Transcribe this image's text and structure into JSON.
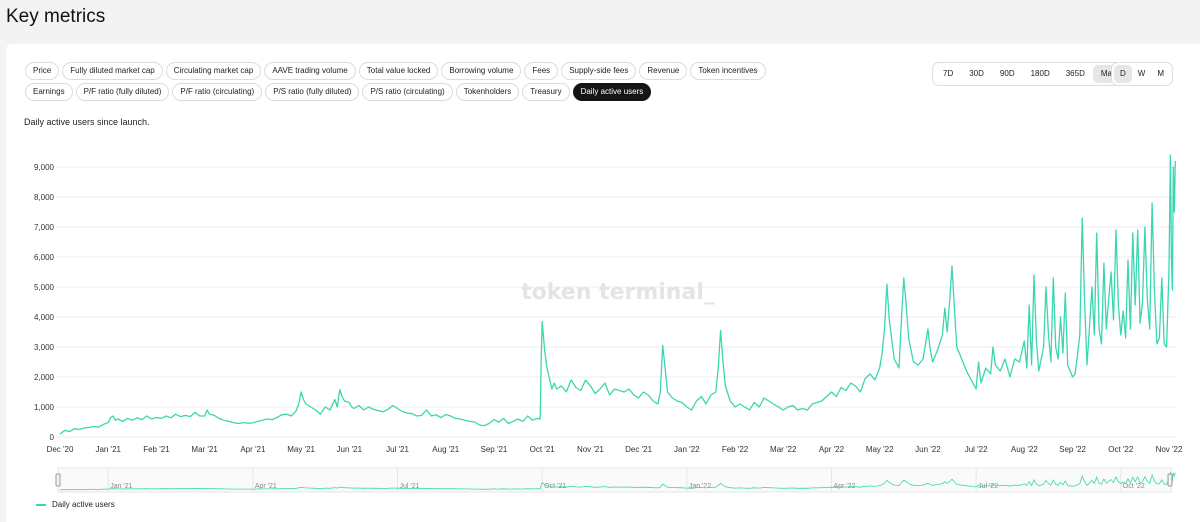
{
  "page": {
    "title": "Key metrics"
  },
  "metric_chips_row1": [
    "Price",
    "Fully diluted market cap",
    "Circulating market cap",
    "AAVE trading volume",
    "Total value locked",
    "Borrowing volume",
    "Fees",
    "Supply-side fees",
    "Revenue",
    "Token incentives"
  ],
  "metric_chips_row2": [
    "Earnings",
    "P/F ratio (fully diluted)",
    "P/F ratio (circulating)",
    "P/S ratio (fully diluted)",
    "P/S ratio (circulating)",
    "Tokenholders",
    "Treasury",
    "Daily active users"
  ],
  "active_metric": "Daily active users",
  "range_options": [
    "7D",
    "30D",
    "90D",
    "180D",
    "365D",
    "Max"
  ],
  "active_range": "Max",
  "granularity_options": [
    "D",
    "W",
    "M"
  ],
  "active_granularity": "D",
  "subtitle": "Daily active users since launch.",
  "watermark": "token terminal_",
  "legend_label": "Daily active users",
  "colors": {
    "line": "#3ad6b0",
    "grid": "#ececec",
    "active_chip": "#151515"
  },
  "chart_data": {
    "type": "line",
    "title": "",
    "xlabel": "",
    "ylabel": "",
    "ylim": [
      0,
      9500
    ],
    "y_ticks": [
      "0",
      "1,000",
      "2,000",
      "3,000",
      "4,000",
      "5,000",
      "6,000",
      "7,000",
      "8,000",
      "9,000"
    ],
    "y_tick_values": [
      0,
      1000,
      2000,
      3000,
      4000,
      5000,
      6000,
      7000,
      8000,
      9000
    ],
    "x_ticks": [
      "Dec '20",
      "Jan '21",
      "Feb '21",
      "Mar '21",
      "Apr '21",
      "May '21",
      "Jun '21",
      "Jul '21",
      "Aug '21",
      "Sep '21",
      "Oct '21",
      "Nov '21",
      "Dec '21",
      "Jan '22",
      "Feb '22",
      "Mar '22",
      "Apr '22",
      "May '22",
      "Jun '22",
      "Jul '22",
      "Aug '22",
      "Sep '22",
      "Oct '22",
      "Nov '22"
    ],
    "navigator_ticks": [
      "Jan '21",
      "Apr '21",
      "Jul '21",
      "Oct '21",
      "Jan '22",
      "Apr '22",
      "Jul '22",
      "Oct '22"
    ],
    "grid": true,
    "legend_position": "bottom-left",
    "x_unit": "months since Dec '20",
    "series": [
      {
        "name": "Daily active users",
        "points": [
          [
            0.0,
            100
          ],
          [
            0.1,
            220
          ],
          [
            0.2,
            180
          ],
          [
            0.3,
            280
          ],
          [
            0.4,
            250
          ],
          [
            0.5,
            300
          ],
          [
            0.6,
            320
          ],
          [
            0.7,
            350
          ],
          [
            0.8,
            330
          ],
          [
            0.9,
            420
          ],
          [
            1.0,
            480
          ],
          [
            1.05,
            650
          ],
          [
            1.1,
            700
          ],
          [
            1.15,
            560
          ],
          [
            1.2,
            600
          ],
          [
            1.3,
            520
          ],
          [
            1.4,
            620
          ],
          [
            1.5,
            560
          ],
          [
            1.6,
            640
          ],
          [
            1.7,
            580
          ],
          [
            1.8,
            700
          ],
          [
            1.9,
            600
          ],
          [
            2.0,
            650
          ],
          [
            2.1,
            620
          ],
          [
            2.2,
            700
          ],
          [
            2.3,
            640
          ],
          [
            2.4,
            760
          ],
          [
            2.5,
            680
          ],
          [
            2.6,
            720
          ],
          [
            2.7,
            680
          ],
          [
            2.8,
            820
          ],
          [
            2.9,
            700
          ],
          [
            3.0,
            700
          ],
          [
            3.05,
            900
          ],
          [
            3.1,
            760
          ],
          [
            3.2,
            720
          ],
          [
            3.3,
            620
          ],
          [
            3.4,
            560
          ],
          [
            3.5,
            520
          ],
          [
            3.6,
            480
          ],
          [
            3.7,
            450
          ],
          [
            3.8,
            480
          ],
          [
            3.9,
            460
          ],
          [
            4.0,
            470
          ],
          [
            4.1,
            520
          ],
          [
            4.2,
            560
          ],
          [
            4.3,
            600
          ],
          [
            4.4,
            580
          ],
          [
            4.5,
            650
          ],
          [
            4.6,
            740
          ],
          [
            4.7,
            760
          ],
          [
            4.8,
            700
          ],
          [
            4.9,
            880
          ],
          [
            4.95,
            1100
          ],
          [
            5.0,
            1500
          ],
          [
            5.05,
            1250
          ],
          [
            5.1,
            1100
          ],
          [
            5.2,
            1000
          ],
          [
            5.3,
            900
          ],
          [
            5.4,
            760
          ],
          [
            5.5,
            1000
          ],
          [
            5.6,
            900
          ],
          [
            5.7,
            1250
          ],
          [
            5.75,
            1000
          ],
          [
            5.8,
            1580
          ],
          [
            5.85,
            1350
          ],
          [
            5.9,
            1200
          ],
          [
            6.0,
            1150
          ],
          [
            6.05,
            1000
          ],
          [
            6.1,
            950
          ],
          [
            6.2,
            1050
          ],
          [
            6.3,
            900
          ],
          [
            6.4,
            1000
          ],
          [
            6.5,
            920
          ],
          [
            6.6,
            880
          ],
          [
            6.7,
            840
          ],
          [
            6.8,
            920
          ],
          [
            6.9,
            1050
          ],
          [
            7.0,
            950
          ],
          [
            7.1,
            850
          ],
          [
            7.2,
            800
          ],
          [
            7.3,
            780
          ],
          [
            7.4,
            700
          ],
          [
            7.5,
            720
          ],
          [
            7.6,
            900
          ],
          [
            7.65,
            800
          ],
          [
            7.7,
            700
          ],
          [
            7.8,
            740
          ],
          [
            7.9,
            650
          ],
          [
            8.0,
            750
          ],
          [
            8.1,
            700
          ],
          [
            8.2,
            620
          ],
          [
            8.3,
            600
          ],
          [
            8.4,
            560
          ],
          [
            8.5,
            520
          ],
          [
            8.6,
            500
          ],
          [
            8.7,
            400
          ],
          [
            8.8,
            380
          ],
          [
            8.9,
            450
          ],
          [
            9.0,
            580
          ],
          [
            9.1,
            500
          ],
          [
            9.2,
            620
          ],
          [
            9.3,
            450
          ],
          [
            9.4,
            520
          ],
          [
            9.5,
            600
          ],
          [
            9.6,
            520
          ],
          [
            9.7,
            700
          ],
          [
            9.8,
            560
          ],
          [
            9.9,
            620
          ],
          [
            9.96,
            600
          ],
          [
            9.98,
            2600
          ],
          [
            10.0,
            3850
          ],
          [
            10.05,
            2900
          ],
          [
            10.1,
            2300
          ],
          [
            10.15,
            1950
          ],
          [
            10.2,
            1600
          ],
          [
            10.25,
            1800
          ],
          [
            10.3,
            1600
          ],
          [
            10.4,
            1700
          ],
          [
            10.5,
            1500
          ],
          [
            10.6,
            1900
          ],
          [
            10.7,
            1650
          ],
          [
            10.8,
            1550
          ],
          [
            10.9,
            1900
          ],
          [
            11.0,
            1700
          ],
          [
            11.1,
            1450
          ],
          [
            11.2,
            1600
          ],
          [
            11.3,
            1800
          ],
          [
            11.4,
            1400
          ],
          [
            11.5,
            1600
          ],
          [
            11.6,
            1550
          ],
          [
            11.7,
            1500
          ],
          [
            11.8,
            1600
          ],
          [
            11.9,
            1400
          ],
          [
            12.0,
            1300
          ],
          [
            12.1,
            1500
          ],
          [
            12.2,
            1400
          ],
          [
            12.3,
            1200
          ],
          [
            12.4,
            1100
          ],
          [
            12.45,
            1500
          ],
          [
            12.5,
            3050
          ],
          [
            12.55,
            2300
          ],
          [
            12.6,
            1500
          ],
          [
            12.7,
            1300
          ],
          [
            12.8,
            1200
          ],
          [
            12.9,
            1150
          ],
          [
            13.0,
            1000
          ],
          [
            13.1,
            900
          ],
          [
            13.2,
            1200
          ],
          [
            13.3,
            1350
          ],
          [
            13.4,
            1100
          ],
          [
            13.5,
            1400
          ],
          [
            13.6,
            1500
          ],
          [
            13.65,
            2300
          ],
          [
            13.7,
            3550
          ],
          [
            13.75,
            2500
          ],
          [
            13.8,
            1700
          ],
          [
            13.9,
            1200
          ],
          [
            14.0,
            1000
          ],
          [
            14.1,
            1100
          ],
          [
            14.2,
            1000
          ],
          [
            14.3,
            900
          ],
          [
            14.4,
            1150
          ],
          [
            14.5,
            1000
          ],
          [
            14.6,
            1300
          ],
          [
            14.7,
            1200
          ],
          [
            14.8,
            1100
          ],
          [
            14.9,
            1000
          ],
          [
            15.0,
            900
          ],
          [
            15.1,
            1000
          ],
          [
            15.2,
            1050
          ],
          [
            15.3,
            900
          ],
          [
            15.4,
            950
          ],
          [
            15.5,
            900
          ],
          [
            15.6,
            1100
          ],
          [
            15.7,
            1150
          ],
          [
            15.8,
            1200
          ],
          [
            15.9,
            1350
          ],
          [
            16.0,
            1500
          ],
          [
            16.1,
            1350
          ],
          [
            16.2,
            1650
          ],
          [
            16.3,
            1550
          ],
          [
            16.4,
            1800
          ],
          [
            16.5,
            1700
          ],
          [
            16.6,
            1500
          ],
          [
            16.7,
            1950
          ],
          [
            16.8,
            2100
          ],
          [
            16.9,
            1900
          ],
          [
            17.0,
            2300
          ],
          [
            17.05,
            2800
          ],
          [
            17.1,
            3600
          ],
          [
            17.15,
            5100
          ],
          [
            17.2,
            3900
          ],
          [
            17.3,
            2600
          ],
          [
            17.4,
            2300
          ],
          [
            17.45,
            3900
          ],
          [
            17.5,
            5300
          ],
          [
            17.55,
            4400
          ],
          [
            17.6,
            3300
          ],
          [
            17.7,
            2500
          ],
          [
            17.8,
            2400
          ],
          [
            17.9,
            2600
          ],
          [
            18.0,
            3600
          ],
          [
            18.05,
            2900
          ],
          [
            18.1,
            2500
          ],
          [
            18.2,
            2900
          ],
          [
            18.3,
            3400
          ],
          [
            18.35,
            4300
          ],
          [
            18.4,
            3500
          ],
          [
            18.45,
            4500
          ],
          [
            18.5,
            5700
          ],
          [
            18.55,
            4300
          ],
          [
            18.6,
            3000
          ],
          [
            18.7,
            2600
          ],
          [
            18.8,
            2200
          ],
          [
            18.9,
            1900
          ],
          [
            19.0,
            1600
          ],
          [
            19.05,
            2500
          ],
          [
            19.1,
            1800
          ],
          [
            19.2,
            2300
          ],
          [
            19.3,
            2100
          ],
          [
            19.35,
            3000
          ],
          [
            19.4,
            2400
          ],
          [
            19.5,
            2200
          ],
          [
            19.6,
            2600
          ],
          [
            19.7,
            2000
          ],
          [
            19.8,
            2600
          ],
          [
            19.9,
            2500
          ],
          [
            20.0,
            3200
          ],
          [
            20.05,
            2300
          ],
          [
            20.1,
            4400
          ],
          [
            20.15,
            2400
          ],
          [
            20.2,
            5400
          ],
          [
            20.25,
            3200
          ],
          [
            20.3,
            2200
          ],
          [
            20.4,
            3000
          ],
          [
            20.45,
            5000
          ],
          [
            20.5,
            3400
          ],
          [
            20.55,
            2500
          ],
          [
            20.6,
            5300
          ],
          [
            20.65,
            3000
          ],
          [
            20.7,
            2600
          ],
          [
            20.75,
            4000
          ],
          [
            20.8,
            2800
          ],
          [
            20.85,
            4800
          ],
          [
            20.9,
            2400
          ],
          [
            21.0,
            2000
          ],
          [
            21.05,
            2100
          ],
          [
            21.1,
            2700
          ],
          [
            21.15,
            3400
          ],
          [
            21.2,
            7300
          ],
          [
            21.25,
            4500
          ],
          [
            21.3,
            2400
          ],
          [
            21.35,
            3600
          ],
          [
            21.4,
            5000
          ],
          [
            21.45,
            3400
          ],
          [
            21.5,
            6800
          ],
          [
            21.55,
            3600
          ],
          [
            21.6,
            3100
          ],
          [
            21.65,
            5800
          ],
          [
            21.7,
            3600
          ],
          [
            21.75,
            4600
          ],
          [
            21.8,
            5500
          ],
          [
            21.85,
            3900
          ],
          [
            21.9,
            6900
          ],
          [
            21.95,
            4400
          ],
          [
            22.0,
            3400
          ],
          [
            22.05,
            4200
          ],
          [
            22.1,
            3300
          ],
          [
            22.15,
            5900
          ],
          [
            22.2,
            3600
          ],
          [
            22.25,
            6800
          ],
          [
            22.3,
            4400
          ],
          [
            22.35,
            6900
          ],
          [
            22.4,
            3800
          ],
          [
            22.45,
            4500
          ],
          [
            22.5,
            7000
          ],
          [
            22.55,
            4600
          ],
          [
            22.6,
            3600
          ],
          [
            22.65,
            7800
          ],
          [
            22.7,
            4800
          ],
          [
            22.75,
            3100
          ],
          [
            22.8,
            3300
          ],
          [
            22.85,
            5300
          ],
          [
            22.9,
            3100
          ],
          [
            22.95,
            3000
          ],
          [
            23.0,
            5600
          ],
          [
            23.03,
            9400
          ],
          [
            23.05,
            6000
          ],
          [
            23.07,
            4900
          ],
          [
            23.09,
            9000
          ],
          [
            23.11,
            7500
          ],
          [
            23.13,
            9200
          ]
        ]
      }
    ]
  }
}
